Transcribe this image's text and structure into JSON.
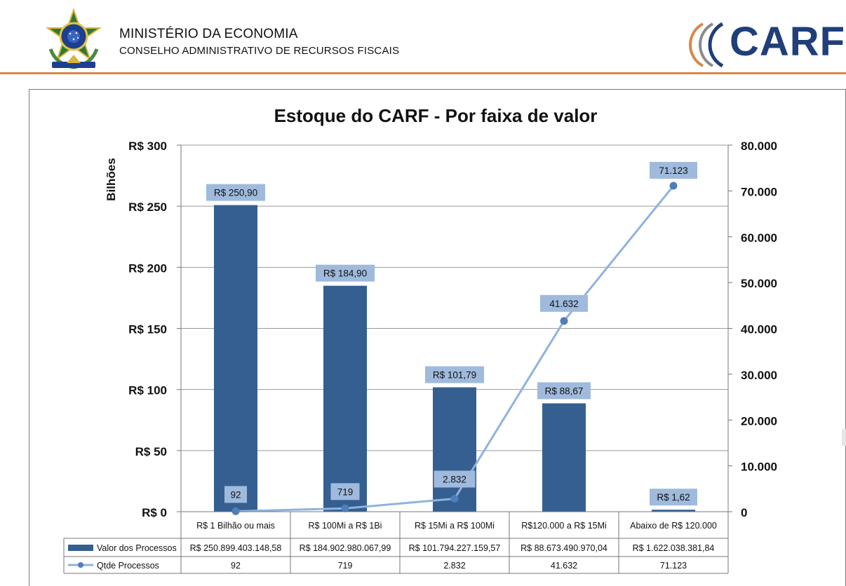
{
  "header": {
    "ministry": "MINISTÉRIO DA ECONOMIA",
    "council": "CONSELHO ADMINISTRATIVO DE RECURSOS FISCAIS",
    "logo_text": "CARF"
  },
  "colors": {
    "bar": "#355f91",
    "line": "#8fb3dd",
    "label_box": "#9fbadc",
    "accent": "#d9874a",
    "logo_blue": "#1f3f7a"
  },
  "chart_data": {
    "type": "bar",
    "title": "Estoque do CARF - Por faixa de valor",
    "ylabel": "Bilhões",
    "categories": [
      "R$ 1 Bilhão ou mais",
      "R$ 100Mi a R$ 1Bi",
      "R$ 15Mi a R$ 100Mi",
      "R$120.000 a R$ 15Mi",
      "Abaixo de R$ 120.000"
    ],
    "ylim": [
      0,
      300
    ],
    "y_ticks": [
      0,
      50,
      100,
      150,
      200,
      250,
      300
    ],
    "y_tick_labels": [
      "R$ 0",
      "R$ 50",
      "R$ 100",
      "R$ 150",
      "R$ 200",
      "R$ 250",
      "R$ 300"
    ],
    "y2lim": [
      0,
      80000
    ],
    "y2_ticks": [
      0,
      10000,
      20000,
      30000,
      40000,
      50000,
      60000,
      70000,
      80000
    ],
    "y2_tick_labels": [
      "0",
      "10.000",
      "20.000",
      "30.000",
      "40.000",
      "50.000",
      "60.000",
      "70.000",
      "80.000"
    ],
    "grid": true,
    "series": [
      {
        "name": "Valor dos Processos",
        "kind": "bar",
        "axis": "left",
        "values": [
          250.9,
          184.9,
          101.79,
          88.67,
          1.62
        ],
        "data_labels": [
          "R$ 250,90",
          "R$ 184,90",
          "R$ 101,79",
          "R$ 88,67",
          "R$ 1,62"
        ],
        "table_values": [
          "R$ 250.899.403.148,58",
          "R$ 184.902.980.067,99",
          "R$ 101.794.227.159,57",
          "R$ 88.673.490.970,04",
          "R$ 1.622.038.381,84"
        ]
      },
      {
        "name": "Qtde Processos",
        "kind": "line",
        "axis": "right",
        "values": [
          92,
          719,
          2832,
          41632,
          71123
        ],
        "data_labels": [
          "92",
          "719",
          "2.832",
          "41.632",
          "71.123"
        ],
        "table_values": [
          "92",
          "719",
          "2.832",
          "41.632",
          "71.123"
        ]
      }
    ]
  }
}
